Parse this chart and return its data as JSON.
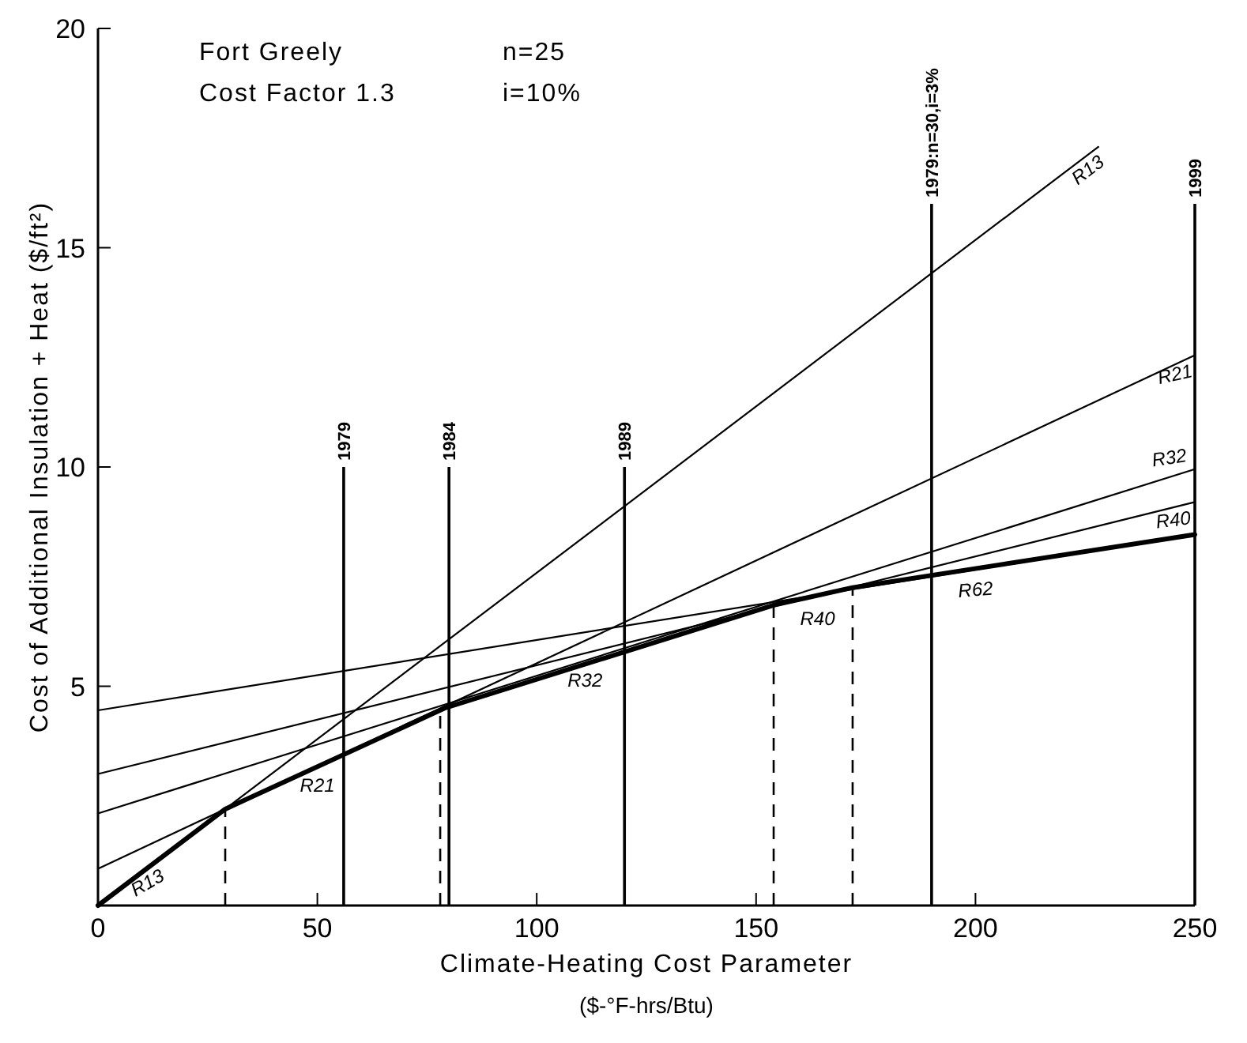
{
  "chart_data": {
    "type": "line",
    "xlabel": "Climate-Heating Cost Parameter\n($-°F-hrs/Btu)",
    "ylabel": "Cost of Additional Insulation + Heat ($/ft²)",
    "xlim": [
      0,
      250
    ],
    "ylim": [
      0,
      20
    ],
    "xticks": [
      0,
      50,
      100,
      150,
      200,
      250
    ],
    "yticks": [
      5,
      10,
      15,
      20
    ],
    "grid": false,
    "marker": "none",
    "line_style": "solid",
    "series": [
      {
        "name": "R13",
        "color": "#000000",
        "x": [
          0,
          228
        ],
        "values": [
          0,
          17.3
        ]
      },
      {
        "name": "R21",
        "color": "#000000",
        "x": [
          0,
          250
        ],
        "values": [
          0.84,
          12.55
        ]
      },
      {
        "name": "R32",
        "color": "#000000",
        "x": [
          0,
          250
        ],
        "values": [
          2.1,
          9.95
        ]
      },
      {
        "name": "R40",
        "color": "#000000",
        "x": [
          0,
          250
        ],
        "values": [
          3.0,
          9.2
        ]
      },
      {
        "name": "R62",
        "color": "#000000",
        "x": [
          0,
          250
        ],
        "values": [
          4.45,
          8.46
        ]
      },
      {
        "color": "#000000",
        "x": [
          0,
          29,
          79,
          154,
          172,
          250
        ],
        "values": [
          0,
          2.2,
          4.5,
          6.85,
          7.25,
          8.46
        ]
      }
    ],
    "ref_lines": [
      {
        "axis": "x",
        "value": 56,
        "line_style": "solid"
      },
      {
        "axis": "x",
        "value": 80,
        "line_style": "solid"
      },
      {
        "axis": "x",
        "value": 120,
        "line_style": "solid"
      },
      {
        "axis": "x",
        "value": 190,
        "line_style": "solid"
      },
      {
        "axis": "x",
        "value": 250,
        "line_style": "solid"
      },
      {
        "axis": "x",
        "value": 29,
        "line_style": "dashed"
      },
      {
        "axis": "x",
        "value": 78,
        "line_style": "dashed"
      },
      {
        "axis": "x",
        "value": 154,
        "line_style": "dashed"
      },
      {
        "axis": "x",
        "value": 172,
        "line_style": "dashed"
      }
    ],
    "annotations": [
      "Fort Greely",
      "n=25",
      "Cost Factor 1.3",
      "i=10%",
      {
        "text": "1979",
        "x": 56,
        "y": 10
      },
      {
        "text": "1984",
        "x": 80,
        "y": 10
      },
      {
        "text": "1989",
        "x": 120,
        "y": 10
      },
      {
        "text": "1979:n=30,i=3%",
        "x": 190,
        "y": 16
      },
      {
        "text": "1999",
        "x": 250,
        "y": 16
      },
      {
        "text": "R13",
        "x": 12,
        "y": 0.9
      },
      {
        "text": "R21",
        "x": 50,
        "y": 3.1
      },
      {
        "text": "R32",
        "x": 111,
        "y": 5.5
      },
      {
        "text": "R40",
        "x": 164,
        "y": 6.9
      }
    ]
  }
}
